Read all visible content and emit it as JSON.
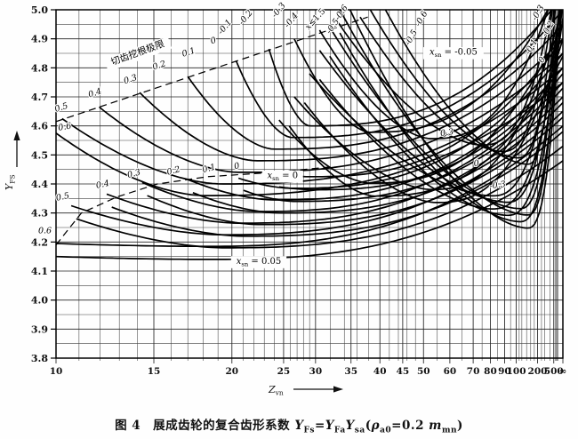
{
  "colors": {
    "background": "#fefefe",
    "ink": "#111111",
    "grid_major": "#222222",
    "grid_minor": "#3f3f3f",
    "curve": "#000000"
  },
  "caption": [
    {
      "t": "图 4　展成齿轮的复合齿形系数 "
    },
    {
      "t": "Y",
      "i": 1
    },
    {
      "t": "Fs",
      "sub": 1
    },
    {
      "t": "="
    },
    {
      "t": "Y",
      "i": 1
    },
    {
      "t": "Fa",
      "sub": 1
    },
    {
      "t": "Y",
      "i": 1
    },
    {
      "t": "sa",
      "sub": 1
    },
    {
      "t": "("
    },
    {
      "t": "ρ",
      "i": 1
    },
    {
      "t": "a0",
      "sub": 1
    },
    {
      "t": "=0.2 "
    },
    {
      "t": "m",
      "i": 1
    },
    {
      "t": "mn",
      "sub": 1
    },
    {
      "t": ")"
    }
  ],
  "chart_data": {
    "type": "line",
    "description": "Composite tooth form factor Y_FS of generated gears versus virtual number of teeth Z_vn, for addendum modification coefficients x = 0.6 to -0.6 in three families x_sn = -0.05, 0, 0.05; dashed line = undercut limit when cutting.",
    "plot": {
      "l": 63,
      "r": 633,
      "t": 11,
      "b": 403
    },
    "y_axis": {
      "label": [
        {
          "t": "Y",
          "i": 1
        },
        {
          "t": "FS",
          "sub": 1
        }
      ],
      "min": 3.8,
      "max": 5.0,
      "major_step": 0.1,
      "minor_step": 0.05,
      "tick_labels": [
        "5.0",
        "4.9",
        "4.8",
        "4.7",
        "4.6",
        "4.5",
        "4.4",
        "4.3",
        "4.2",
        "4.1",
        "4.0",
        "3.9",
        "3.8"
      ]
    },
    "x_axis": {
      "label": [
        {
          "t": "Z",
          "i": 1
        },
        {
          "t": "vn",
          "sub": 1
        }
      ],
      "ticks": [
        [
          "10",
          0
        ],
        [
          "15",
          0.193
        ],
        [
          "20",
          0.347
        ],
        [
          "25",
          0.449
        ],
        [
          "30",
          0.512
        ],
        [
          "35",
          0.582
        ],
        [
          "40",
          0.639
        ],
        [
          "45",
          0.684
        ],
        [
          "50",
          0.725
        ],
        [
          "60",
          0.777
        ],
        [
          "70",
          0.823
        ],
        [
          "80",
          0.857
        ],
        [
          "90",
          0.885
        ],
        [
          "100",
          0.908
        ],
        [
          "200",
          0.95
        ],
        [
          "500",
          0.982
        ],
        [
          "∞",
          1.0
        ]
      ],
      "anchors": [
        [
          10,
          0
        ],
        [
          15,
          0.193
        ],
        [
          20,
          0.347
        ],
        [
          25,
          0.449
        ],
        [
          30,
          0.512
        ],
        [
          35,
          0.582
        ],
        [
          40,
          0.639
        ],
        [
          45,
          0.684
        ],
        [
          50,
          0.725
        ],
        [
          60,
          0.777
        ],
        [
          70,
          0.823
        ],
        [
          80,
          0.857
        ],
        [
          90,
          0.885
        ],
        [
          100,
          0.908
        ],
        [
          200,
          0.95
        ],
        [
          500,
          0.982
        ],
        [
          1000,
          0.992
        ]
      ],
      "minor_z": [
        11,
        12,
        13,
        14,
        16,
        17,
        18,
        19,
        21,
        22,
        23,
        24,
        26,
        27,
        28,
        29,
        32,
        34,
        36,
        38,
        42,
        44,
        46,
        48,
        55,
        65,
        75,
        85,
        95,
        110,
        120,
        140,
        160,
        180,
        250,
        300,
        400,
        600,
        700,
        800,
        900
      ]
    },
    "limit_lines": [
      {
        "name": "undercut-limit-top",
        "points": [
          [
            0,
            4.615
          ],
          [
            0.615,
            4.975
          ]
        ]
      },
      {
        "name": "undercut-limit-mid",
        "points": [
          [
            0,
            4.19
          ],
          [
            0.05,
            4.3
          ],
          [
            0.12,
            4.355
          ],
          [
            0.2,
            4.4
          ],
          [
            0.3,
            4.425
          ],
          [
            0.43,
            4.44
          ],
          [
            0.55,
            4.46
          ]
        ]
      }
    ],
    "families": [
      {
        "name": "x_sn = -0.05",
        "curves": [
          [
            0.6,
            0.0,
            4.575,
            0.29,
            4.36,
            4.75
          ],
          [
            0.5,
            0.012,
            4.625,
            0.325,
            4.4,
            4.8
          ],
          [
            0.4,
            0.085,
            4.665,
            0.36,
            4.44,
            4.85
          ],
          [
            0.3,
            0.165,
            4.715,
            0.395,
            4.48,
            4.9
          ],
          [
            0.2,
            0.26,
            4.77,
            0.43,
            4.52,
            4.95
          ],
          [
            0.1,
            0.355,
            4.825,
            0.465,
            4.56,
            5.0
          ],
          [
            0.0,
            0.42,
            4.865,
            0.5,
            4.6,
            5.05
          ],
          [
            -0.1,
            0.47,
            4.9,
            0.62,
            4.578,
            5.1
          ],
          [
            -0.2,
            0.52,
            4.93,
            0.74,
            4.556,
            5.16
          ],
          [
            -0.3,
            0.555,
            4.96,
            0.84,
            4.534,
            5.23
          ],
          [
            -0.4,
            0.6,
            4.975,
            0.88,
            4.512,
            5.31
          ],
          [
            -0.5,
            0.62,
            5.0,
            0.91,
            4.49,
            5.39
          ],
          [
            -0.6,
            0.65,
            5.0,
            0.93,
            4.468,
            5.47
          ]
        ]
      },
      {
        "name": "x_sn = 0",
        "curves": [
          [
            0.6,
            0.0,
            4.195,
            0.29,
            4.185,
            4.6
          ],
          [
            0.5,
            0.03,
            4.325,
            0.325,
            4.225,
            4.65
          ],
          [
            0.4,
            0.1,
            4.365,
            0.36,
            4.265,
            4.7
          ],
          [
            0.3,
            0.17,
            4.405,
            0.395,
            4.305,
            4.75
          ],
          [
            0.2,
            0.26,
            4.415,
            0.43,
            4.345,
            4.8
          ],
          [
            0.1,
            0.36,
            4.42,
            0.465,
            4.385,
            4.85
          ],
          [
            0.0,
            0.43,
            4.435,
            0.5,
            4.425,
            4.9
          ],
          [
            -0.1,
            0.44,
            4.62,
            0.62,
            4.403,
            4.95
          ],
          [
            -0.2,
            0.47,
            4.7,
            0.74,
            4.381,
            5.01
          ],
          [
            -0.3,
            0.5,
            4.78,
            0.86,
            4.359,
            5.07
          ],
          [
            -0.4,
            0.52,
            4.86,
            0.89,
            4.337,
            5.13
          ],
          [
            -0.5,
            0.54,
            4.94,
            0.915,
            4.315,
            5.19
          ],
          [
            -0.6,
            0.56,
            5.0,
            0.93,
            4.293,
            5.26
          ]
        ]
      },
      {
        "name": "x_sn = 0.05",
        "curves": [
          [
            0.6,
            0.0,
            4.15,
            0.3,
            4.14,
            4.48
          ],
          [
            0.5,
            0.04,
            4.28,
            0.33,
            4.18,
            4.53
          ],
          [
            0.4,
            0.11,
            4.32,
            0.37,
            4.22,
            4.58
          ],
          [
            0.3,
            0.18,
            4.36,
            0.4,
            4.26,
            4.63
          ],
          [
            0.2,
            0.27,
            4.37,
            0.44,
            4.3,
            4.68
          ],
          [
            0.1,
            0.37,
            4.378,
            0.47,
            4.34,
            4.73
          ],
          [
            0.0,
            0.44,
            4.39,
            0.51,
            4.38,
            4.78
          ],
          [
            -0.1,
            0.46,
            4.6,
            0.63,
            4.358,
            4.84
          ],
          [
            -0.2,
            0.49,
            4.68,
            0.75,
            4.336,
            4.9
          ],
          [
            -0.3,
            0.52,
            4.76,
            0.86,
            4.314,
            4.97
          ],
          [
            -0.4,
            0.54,
            4.84,
            0.89,
            4.292,
            5.03
          ],
          [
            -0.5,
            0.56,
            4.92,
            0.915,
            4.27,
            5.09
          ],
          [
            -0.6,
            0.58,
            5.0,
            0.93,
            4.248,
            5.15
          ]
        ]
      }
    ],
    "labels": [
      {
        "s": [
          {
            "t": "切齿挖根极限"
          }
        ],
        "t": 0.163,
        "y": 4.842,
        "r": -20,
        "box": 1,
        "fs": 10.5
      },
      {
        "s": [
          {
            "t": "0.5",
            "i": 1
          }
        ],
        "t": 0.012,
        "y": 4.655,
        "r": -18
      },
      {
        "s": [
          {
            "t": "0.4",
            "i": 1
          }
        ],
        "t": 0.078,
        "y": 4.705,
        "r": -18
      },
      {
        "s": [
          {
            "t": "0.3",
            "i": 1
          }
        ],
        "t": 0.148,
        "y": 4.752,
        "r": -18
      },
      {
        "s": [
          {
            "t": "0.2",
            "i": 1
          }
        ],
        "t": 0.205,
        "y": 4.8,
        "r": -18
      },
      {
        "s": [
          {
            "t": "0.1",
            "i": 1
          }
        ],
        "t": 0.263,
        "y": 4.845,
        "r": -18
      },
      {
        "s": [
          {
            "t": "0",
            "i": 1
          }
        ],
        "t": 0.312,
        "y": 4.885,
        "r": -18
      },
      {
        "s": [
          {
            "t": "-0.1",
            "i": 1
          }
        ],
        "t": 0.337,
        "y": 4.935,
        "r": -50
      },
      {
        "s": [
          {
            "t": "-0.2",
            "i": 1
          }
        ],
        "t": 0.378,
        "y": 4.968,
        "r": -50
      },
      {
        "s": [
          {
            "t": "-0.3",
            "i": 1
          }
        ],
        "t": 0.443,
        "y": 4.993,
        "r": -50
      },
      {
        "s": [
          {
            "t": "-0.4",
            "i": 1
          }
        ],
        "t": 0.468,
        "y": 4.958,
        "r": -50
      },
      {
        "s": [
          {
            "t": "x",
            "i": 1
          },
          {
            "t": "≤1.5"
          }
        ],
        "t": 0.515,
        "y": 4.962,
        "r": -48
      },
      {
        "s": [
          {
            "t": "-0.5",
            "i": 1
          }
        ],
        "t": 0.55,
        "y": 4.938,
        "r": -55
      },
      {
        "s": [
          {
            "t": "-0.6",
            "i": 1
          }
        ],
        "t": 0.567,
        "y": 4.985,
        "r": -55
      },
      {
        "s": [
          {
            "t": "0.6",
            "i": 1
          }
        ],
        "t": 0.018,
        "y": 4.588,
        "r": -10
      },
      {
        "s": [
          {
            "t": "-0.5",
            "i": 1
          }
        ],
        "t": 0.705,
        "y": 4.9,
        "r": -60
      },
      {
        "s": [
          {
            "t": "-0.6",
            "i": 1
          }
        ],
        "t": 0.725,
        "y": 4.965,
        "r": -60
      },
      {
        "s": [
          {
            "t": "-0.3",
            "i": 1
          }
        ],
        "t": 0.955,
        "y": 4.985,
        "r": -60
      },
      {
        "s": [
          {
            "t": "-0.2",
            "i": 1
          }
        ],
        "t": 0.975,
        "y": 4.93,
        "r": -60
      },
      {
        "s": [
          {
            "t": "-0.1",
            "i": 1
          }
        ],
        "t": 0.942,
        "y": 4.868,
        "r": -60
      },
      {
        "s": [
          {
            "t": "0",
            "i": 1
          }
        ],
        "t": 0.963,
        "y": 4.823,
        "r": -60
      },
      {
        "s": [
          {
            "t": "0.6",
            "i": 1
          }
        ],
        "t": -0.022,
        "y": 4.23,
        "r": 0
      },
      {
        "s": [
          {
            "t": "0.5",
            "i": 1
          }
        ],
        "t": 0.014,
        "y": 4.347,
        "r": -12
      },
      {
        "s": [
          {
            "t": "0.4",
            "i": 1
          }
        ],
        "t": 0.093,
        "y": 4.39,
        "r": -12
      },
      {
        "s": [
          {
            "t": "0.3",
            "i": 1
          }
        ],
        "t": 0.155,
        "y": 4.427,
        "r": -15
      },
      {
        "s": [
          {
            "t": "0.2",
            "i": 1
          }
        ],
        "t": 0.233,
        "y": 4.437,
        "r": -15
      },
      {
        "s": [
          {
            "t": "0.1",
            "i": 1
          }
        ],
        "t": 0.303,
        "y": 4.445,
        "r": -15
      },
      {
        "s": [
          {
            "t": "0",
            "i": 1
          }
        ],
        "t": 0.358,
        "y": 4.453,
        "r": -15
      },
      {
        "s": [
          {
            "t": "0.3",
            "i": 1
          }
        ],
        "t": 0.772,
        "y": 4.568,
        "r": -8
      },
      {
        "s": [
          {
            "t": "0",
            "i": 1
          }
        ],
        "t": 0.83,
        "y": 4.462,
        "r": -8
      },
      {
        "s": [
          {
            "t": "-0.3",
            "i": 1
          }
        ],
        "t": 0.872,
        "y": 4.387,
        "r": -8
      },
      {
        "s": [
          {
            "t": "x",
            "i": 1
          },
          {
            "t": "sn",
            "sub": 1
          },
          {
            "t": " = -0.05"
          }
        ],
        "t": 0.784,
        "y": 4.845,
        "r": 0,
        "box": 1,
        "fs": 10
      },
      {
        "s": [
          {
            "t": "x",
            "i": 1
          },
          {
            "t": "sn",
            "sub": 1
          },
          {
            "t": " = 0"
          }
        ],
        "t": 0.447,
        "y": 4.42,
        "r": 0,
        "box": 1,
        "fs": 10
      },
      {
        "s": [
          {
            "t": "x",
            "i": 1
          },
          {
            "t": "sn",
            "sub": 1
          },
          {
            "t": " = 0.05"
          }
        ],
        "t": 0.4,
        "y": 4.125,
        "r": 0,
        "box": 1,
        "fs": 10
      }
    ]
  }
}
